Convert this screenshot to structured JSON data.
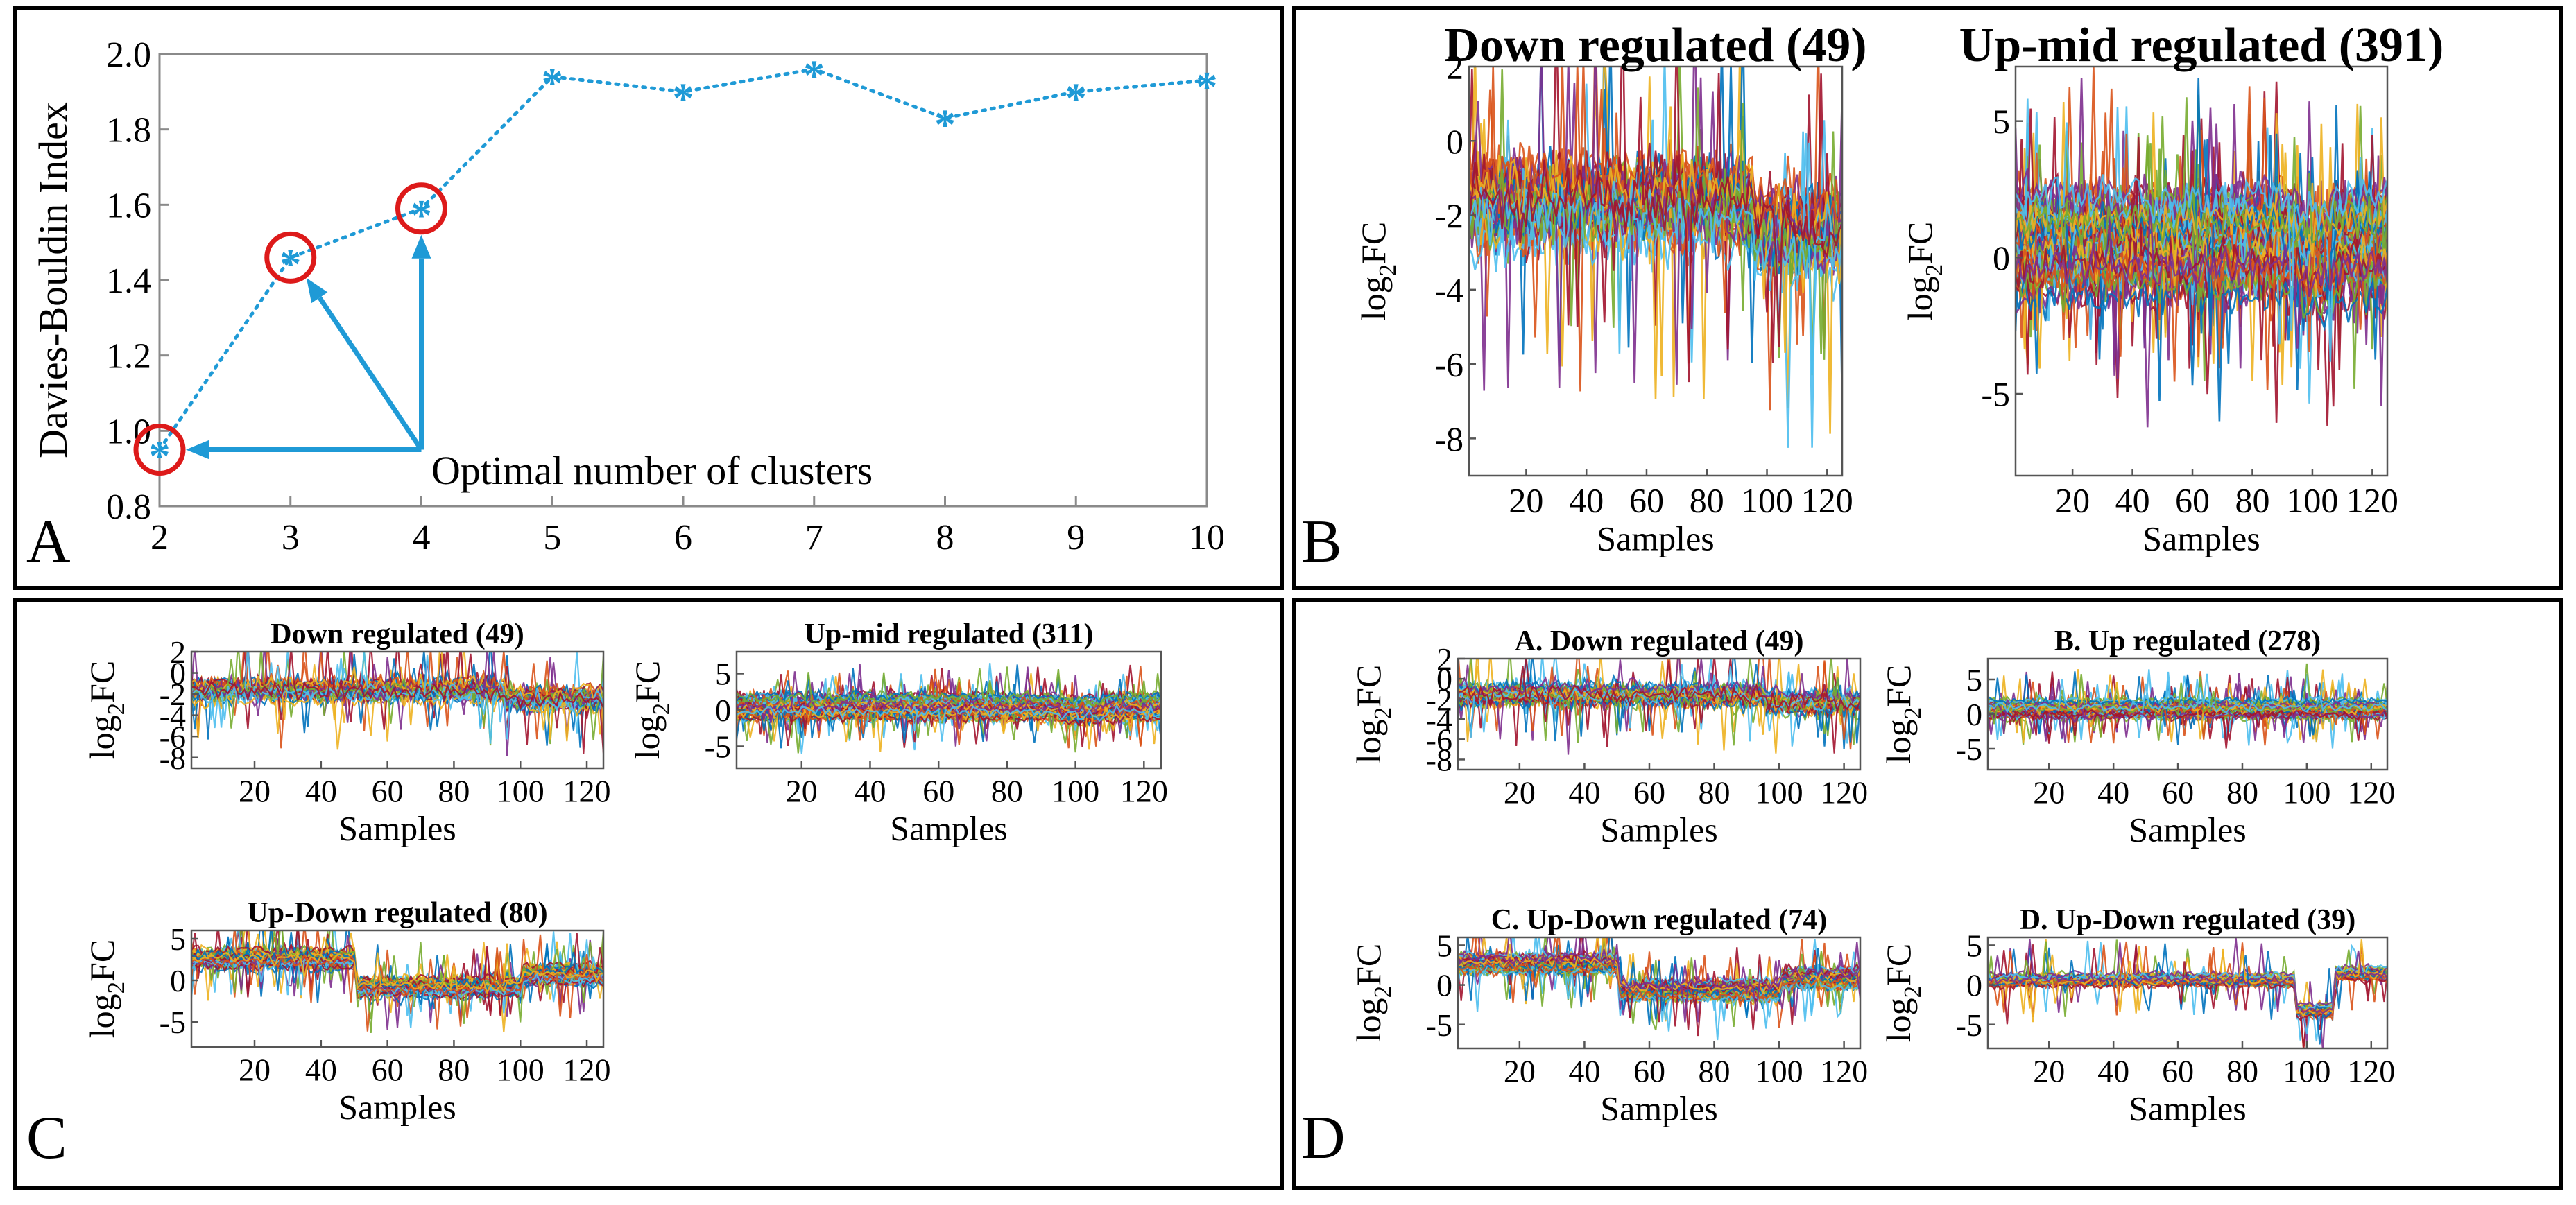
{
  "colors": {
    "accent": "#1f9ad6",
    "circle": "#dd1a1a",
    "series": [
      "#0072BD",
      "#D95319",
      "#EDB120",
      "#7E2F8E",
      "#77AC30",
      "#4DBEEE",
      "#A2142F"
    ]
  },
  "panel_labels": [
    "A",
    "B",
    "C",
    "D"
  ],
  "chart_data": [
    {
      "id": "A",
      "type": "line",
      "ylabel": "Davies-Bouldin Index",
      "xlabel": "",
      "x": [
        2,
        3,
        4,
        5,
        6,
        7,
        8,
        9,
        10
      ],
      "values": [
        0.95,
        1.46,
        1.59,
        1.94,
        1.9,
        1.96,
        1.83,
        1.9,
        1.93
      ],
      "xlim": [
        2,
        10
      ],
      "ylim": [
        0.8,
        2.0
      ],
      "xticks": [
        "2",
        "3",
        "4",
        "5",
        "6",
        "7",
        "8",
        "9",
        "10"
      ],
      "yticks": [
        "0.8",
        "1.0",
        "1.2",
        "1.4",
        "1.6",
        "1.8",
        "2.0"
      ],
      "highlighted_x": [
        2,
        3,
        4
      ],
      "annotation": "Optimal number of clusters",
      "grid": false
    },
    {
      "id": "B1",
      "type": "line",
      "panel": "B",
      "title": "Down regulated (49)",
      "xlabel": "Samples",
      "ylabel_main": "log",
      "ylabel_sub": "2",
      "ylabel_end": "FC",
      "xlim": [
        1,
        125
      ],
      "ylim": [
        -9,
        2
      ],
      "xticks": [
        "20",
        "40",
        "60",
        "80",
        "100",
        "120"
      ],
      "yticks": [
        "-8",
        "-6",
        "-4",
        "-2",
        "0",
        "2"
      ],
      "series_count": 49,
      "profile": "down"
    },
    {
      "id": "B2",
      "type": "line",
      "panel": "B",
      "title": "Up-mid regulated (391)",
      "xlabel": "Samples",
      "ylabel_main": "log",
      "ylabel_sub": "2",
      "ylabel_end": "FC",
      "xlim": [
        1,
        125
      ],
      "ylim": [
        -8,
        7
      ],
      "xticks": [
        "20",
        "40",
        "60",
        "80",
        "100",
        "120"
      ],
      "yticks": [
        "-5",
        "0",
        "5"
      ],
      "series_count": 391,
      "profile": "upmid"
    },
    {
      "id": "C1",
      "type": "line",
      "panel": "C",
      "title": "Down regulated (49)",
      "xlabel": "Samples",
      "ylabel_main": "log",
      "ylabel_sub": "2",
      "ylabel_end": "FC",
      "xlim": [
        1,
        125
      ],
      "ylim": [
        -9,
        2
      ],
      "xticks": [
        "20",
        "40",
        "60",
        "80",
        "100",
        "120"
      ],
      "yticks": [
        "-8",
        "-6",
        "-4",
        "-2",
        "0",
        "2"
      ],
      "series_count": 49,
      "profile": "down"
    },
    {
      "id": "C2",
      "type": "line",
      "panel": "C",
      "title": "Up-mid regulated (311)",
      "xlabel": "Samples",
      "ylabel_main": "log",
      "ylabel_sub": "2",
      "ylabel_end": "FC",
      "xlim": [
        1,
        125
      ],
      "ylim": [
        -8,
        8
      ],
      "xticks": [
        "20",
        "40",
        "60",
        "80",
        "100",
        "120"
      ],
      "yticks": [
        "-5",
        "0",
        "5"
      ],
      "series_count": 311,
      "profile": "upmid"
    },
    {
      "id": "C3",
      "type": "line",
      "panel": "C",
      "title": "Up-Down regulated (80)",
      "xlabel": "Samples",
      "ylabel_main": "log",
      "ylabel_sub": "2",
      "ylabel_end": "FC",
      "xlim": [
        1,
        125
      ],
      "ylim": [
        -8,
        6
      ],
      "xticks": [
        "20",
        "40",
        "60",
        "80",
        "100",
        "120"
      ],
      "yticks": [
        "-5",
        "0",
        "5"
      ],
      "series_count": 80,
      "profile": "updown"
    },
    {
      "id": "D1",
      "type": "line",
      "panel": "D",
      "title": "A. Down regulated (49)",
      "xlabel": "Samples",
      "ylabel_main": "log",
      "ylabel_sub": "2",
      "ylabel_end": "FC",
      "xlim": [
        1,
        125
      ],
      "ylim": [
        -9,
        2
      ],
      "xticks": [
        "20",
        "40",
        "60",
        "80",
        "100",
        "120"
      ],
      "yticks": [
        "-8",
        "-6",
        "-4",
        "-2",
        "0",
        "2"
      ],
      "series_count": 49,
      "profile": "down"
    },
    {
      "id": "D2",
      "type": "line",
      "panel": "D",
      "title": "B. Up regulated (278)",
      "xlabel": "Samples",
      "ylabel_main": "log",
      "ylabel_sub": "2",
      "ylabel_end": "FC",
      "xlim": [
        1,
        125
      ],
      "ylim": [
        -8,
        8
      ],
      "xticks": [
        "20",
        "40",
        "60",
        "80",
        "100",
        "120"
      ],
      "yticks": [
        "-5",
        "0",
        "5"
      ],
      "series_count": 278,
      "profile": "up"
    },
    {
      "id": "D3",
      "type": "line",
      "panel": "D",
      "title": "C. Up-Down regulated (74)",
      "xlabel": "Samples",
      "ylabel_main": "log",
      "ylabel_sub": "2",
      "ylabel_end": "FC",
      "xlim": [
        1,
        125
      ],
      "ylim": [
        -8,
        6
      ],
      "xticks": [
        "20",
        "40",
        "60",
        "80",
        "100",
        "120"
      ],
      "yticks": [
        "-5",
        "0",
        "5"
      ],
      "series_count": 74,
      "profile": "updown"
    },
    {
      "id": "D4",
      "type": "line",
      "panel": "D",
      "title": "D. Up-Down regulated (39)",
      "xlabel": "Samples",
      "ylabel_main": "log",
      "ylabel_sub": "2",
      "ylabel_end": "FC",
      "xlim": [
        1,
        125
      ],
      "ylim": [
        -8,
        6
      ],
      "xticks": [
        "20",
        "40",
        "60",
        "80",
        "100",
        "120"
      ],
      "yticks": [
        "-5",
        "0",
        "5"
      ],
      "series_count": 39,
      "profile": "downup"
    }
  ]
}
